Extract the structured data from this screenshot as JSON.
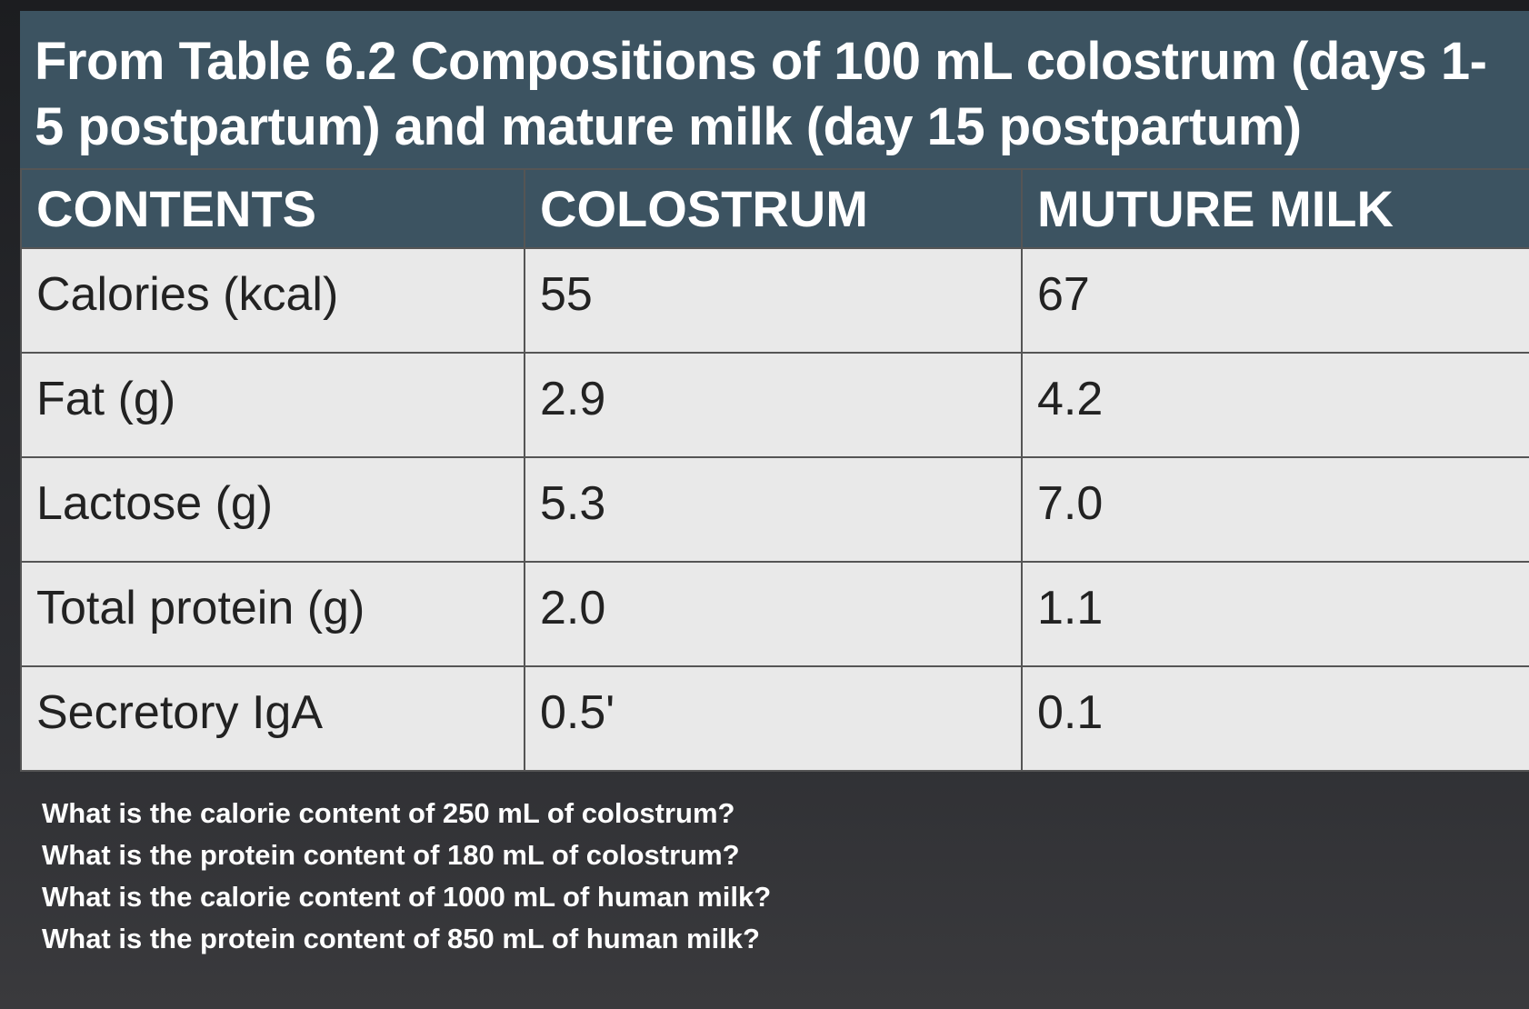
{
  "header": {
    "title": "From Table 6.2 Compositions of 100 mL colostrum (days 1-5 postpartum) and mature milk (day 15 postpartum)"
  },
  "table": {
    "columns": [
      "CONTENTS",
      "COLOSTRUM",
      "MUTURE MILK"
    ],
    "rows": [
      [
        "Calories (kcal)",
        "55",
        "67"
      ],
      [
        "Fat (g)",
        "2.9",
        "4.2"
      ],
      [
        "Lactose (g)",
        "5.3",
        "7.0"
      ],
      [
        "Total protein (g)",
        "2.0",
        "1.1"
      ],
      [
        "Secretory IgA",
        "0.5'",
        "0.1"
      ]
    ]
  },
  "questions": [
    "What is the calorie content of 250 mL of colostrum?",
    "What is the protein content of 180 mL of colostrum?",
    "What is the calorie content of 1000 mL of human milk?",
    "What is the protein content of 850 mL of human milk?"
  ]
}
